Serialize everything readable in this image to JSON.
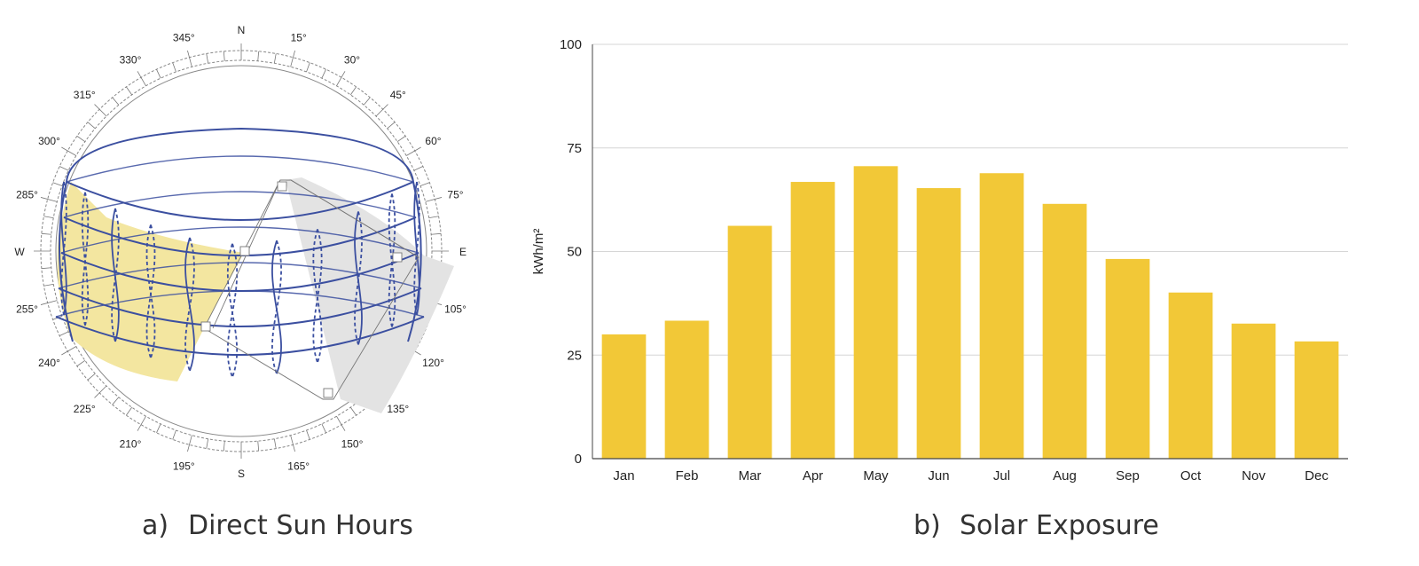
{
  "sun_path": {
    "compass": [
      "N",
      "E",
      "S",
      "W"
    ],
    "degree_labels": [
      "15°",
      "30°",
      "45°",
      "60°",
      "75°",
      "105°",
      "120°",
      "135°",
      "150°",
      "165°",
      "195°",
      "210°",
      "225°",
      "240°",
      "255°",
      "285°",
      "300°",
      "315°",
      "330°",
      "345°"
    ],
    "caption_letter": "a)",
    "caption_text": "Direct Sun Hours",
    "colors": {
      "path_lines": "#3b4fa0",
      "lit_fill": "#f3e6a0",
      "shadow_fill": "#e3e3e3",
      "ring": "#888888"
    }
  },
  "bar_chart": {
    "caption_letter": "b)",
    "caption_text": "Solar Exposure",
    "bar_color": "#f2c837"
  },
  "chart_data": {
    "type": "bar",
    "categories": [
      "Jan",
      "Feb",
      "Mar",
      "Apr",
      "May",
      "Jun",
      "Jul",
      "Aug",
      "Sep",
      "Oct",
      "Nov",
      "Dec"
    ],
    "values": [
      30,
      33.3,
      56.2,
      66.8,
      70.6,
      65.3,
      68.9,
      61.5,
      48.2,
      40.1,
      32.6,
      28.3
    ],
    "ylabel": "kWh/m²",
    "xlabel": "",
    "title": "",
    "ylim": [
      0,
      100
    ],
    "yticks": [
      0,
      25,
      50,
      75,
      100
    ],
    "grid": true,
    "legend": "none"
  }
}
